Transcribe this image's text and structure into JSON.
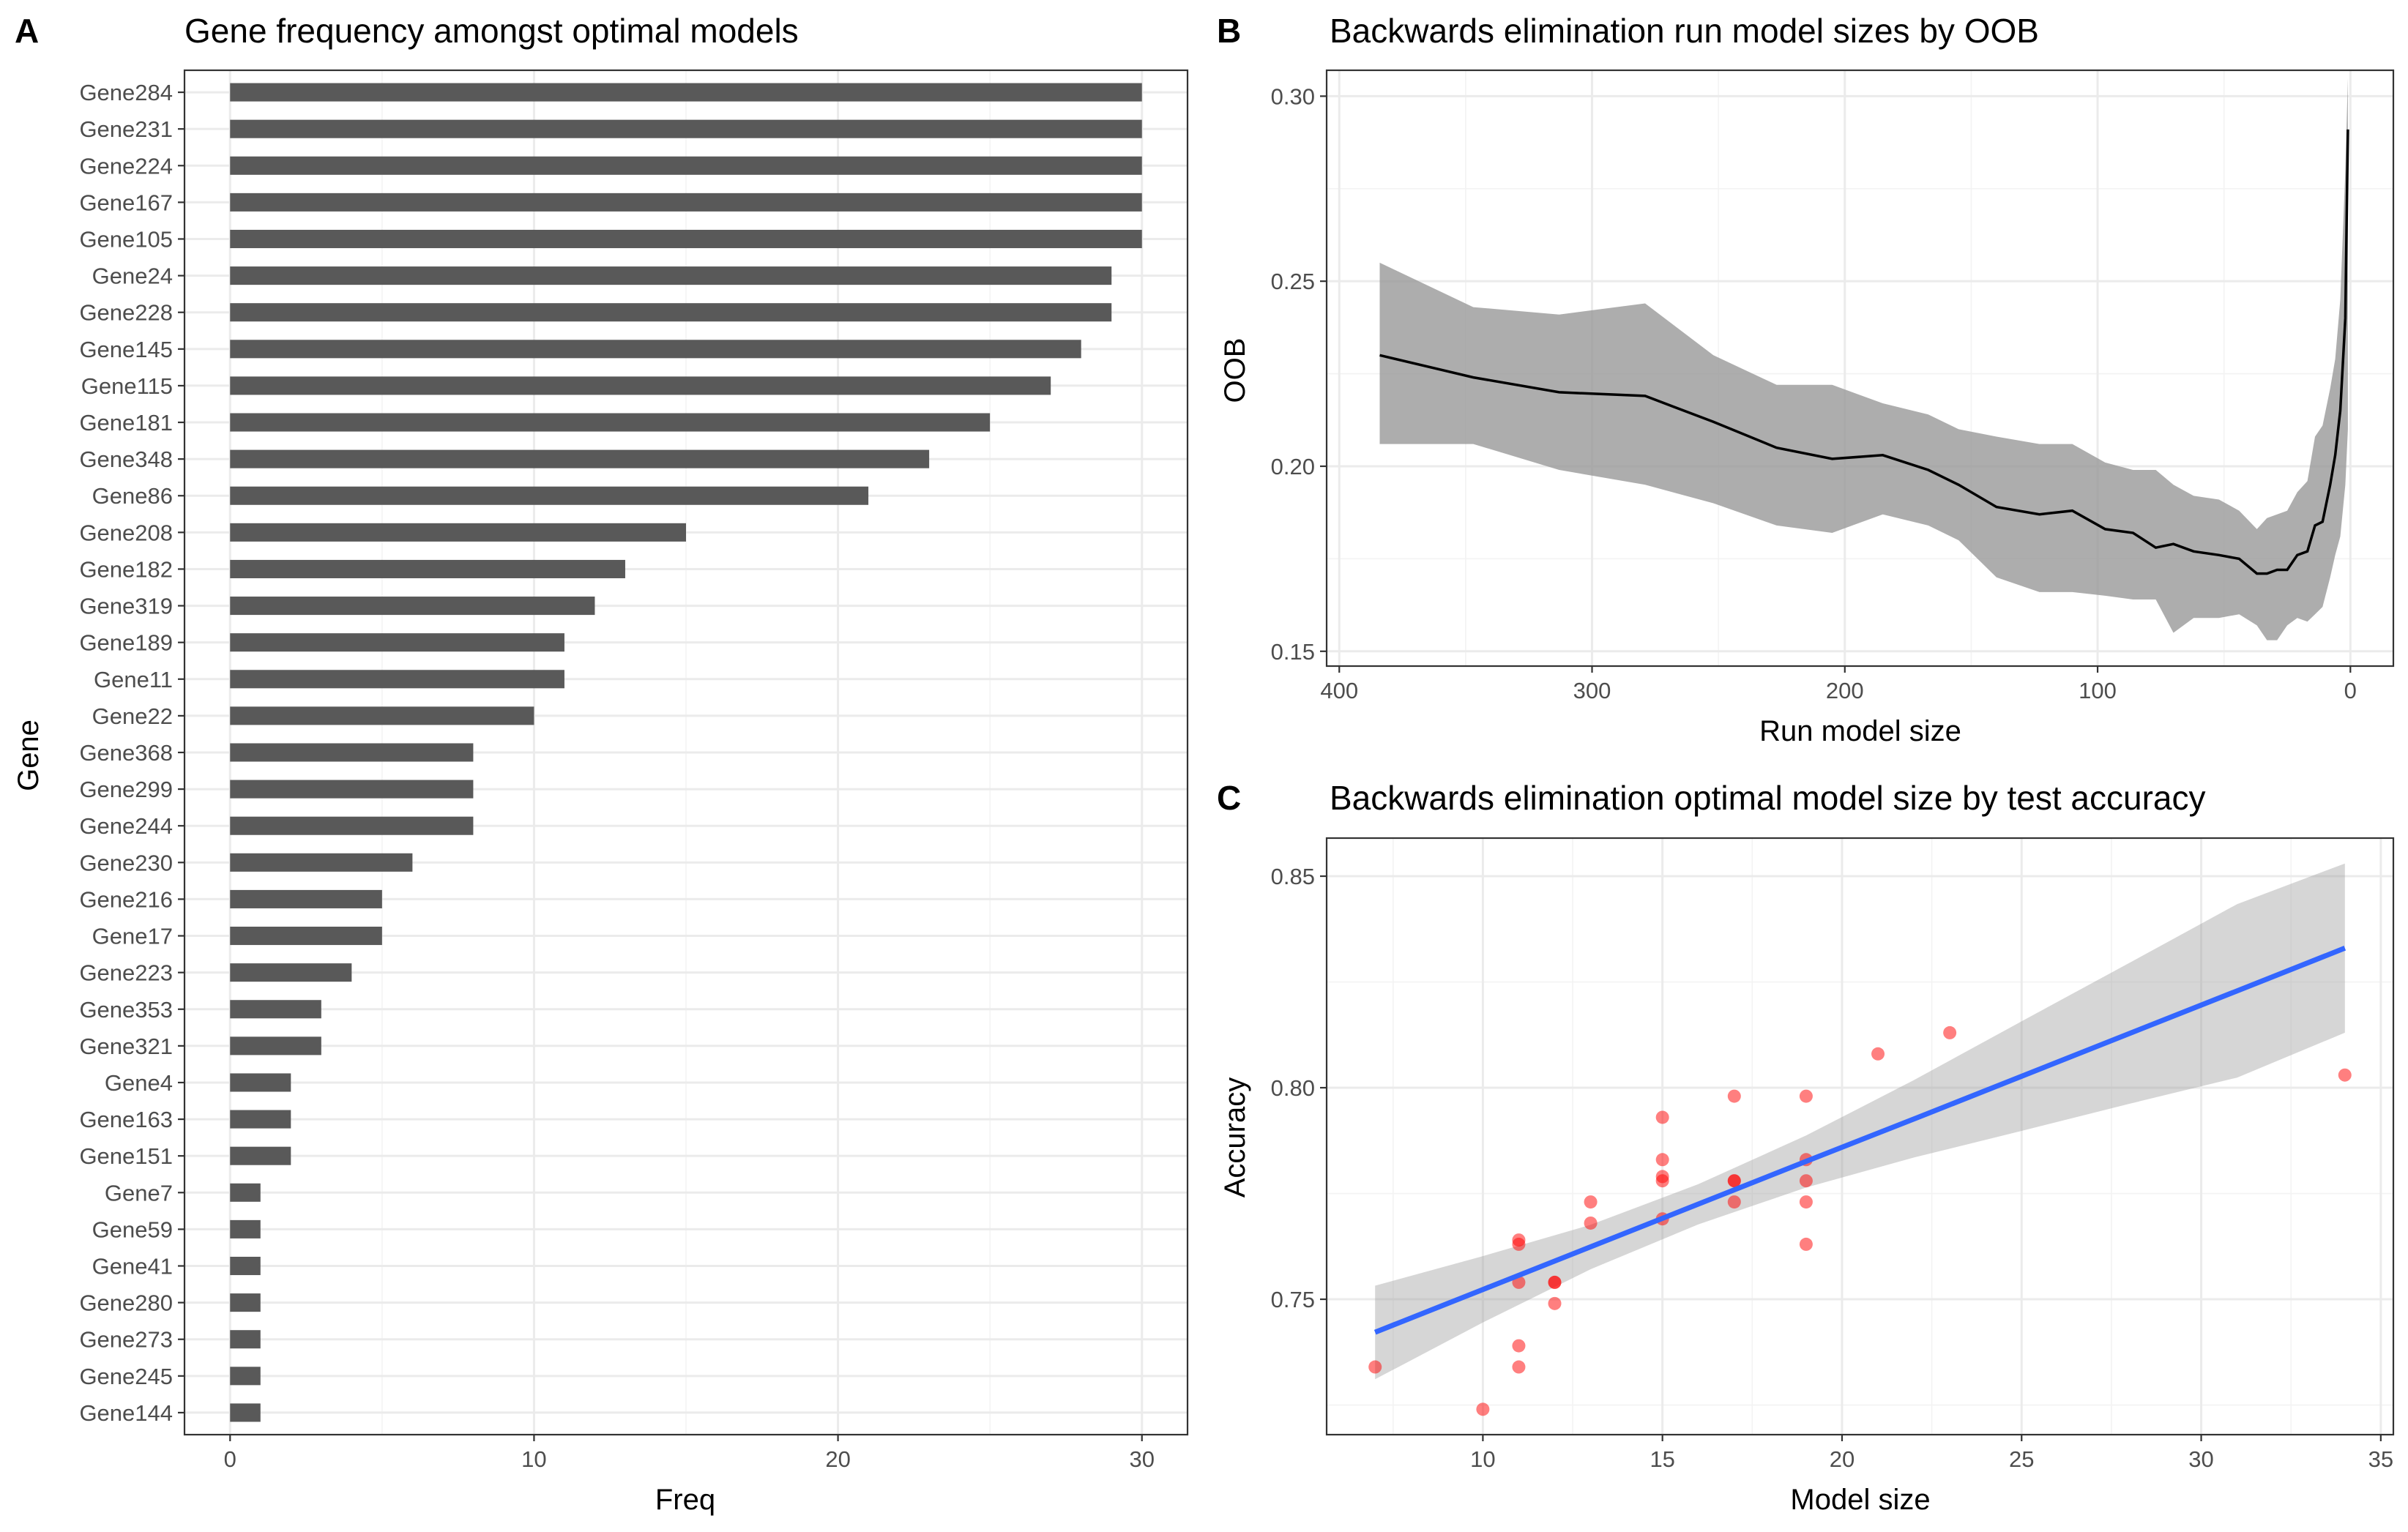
{
  "chart_data": [
    {
      "panel": "A",
      "type": "bar",
      "orientation": "horizontal",
      "title": "Gene frequency amongst optimal models",
      "xlabel": "Freq",
      "ylabel": "Gene",
      "xlim": [
        -1.5,
        31.5
      ],
      "xticks": [
        0,
        10,
        20,
        30
      ],
      "grid": true,
      "bar_color": "#595959",
      "categories": [
        "Gene284",
        "Gene231",
        "Gene224",
        "Gene167",
        "Gene105",
        "Gene24",
        "Gene228",
        "Gene145",
        "Gene115",
        "Gene181",
        "Gene348",
        "Gene86",
        "Gene208",
        "Gene182",
        "Gene319",
        "Gene189",
        "Gene11",
        "Gene22",
        "Gene368",
        "Gene299",
        "Gene244",
        "Gene230",
        "Gene216",
        "Gene17",
        "Gene223",
        "Gene353",
        "Gene321",
        "Gene4",
        "Gene163",
        "Gene151",
        "Gene7",
        "Gene59",
        "Gene41",
        "Gene280",
        "Gene273",
        "Gene245",
        "Gene144"
      ],
      "values": [
        30,
        30,
        30,
        30,
        30,
        29,
        29,
        28,
        27,
        25,
        23,
        21,
        15,
        13,
        12,
        11,
        11,
        10,
        8,
        8,
        8,
        6,
        5,
        5,
        4,
        3,
        3,
        2,
        2,
        2,
        1,
        1,
        1,
        1,
        1,
        1,
        1
      ]
    },
    {
      "panel": "B",
      "type": "line",
      "title": "Backwards elimination run model sizes by OOB",
      "xlabel": "Run model size",
      "ylabel": "OOB",
      "xlim": [
        405,
        -17
      ],
      "ylim": [
        0.146,
        0.307
      ],
      "xticks": [
        400,
        300,
        200,
        100,
        0
      ],
      "yticks": [
        0.15,
        0.2,
        0.25,
        0.3
      ],
      "grid": true,
      "x_reversed": true,
      "line_color": "#000000",
      "band_color": "#999999",
      "x": [
        384,
        347,
        313,
        279,
        252,
        227,
        205,
        185,
        167,
        155,
        140,
        123,
        110,
        97,
        86,
        77,
        70,
        62,
        52,
        44,
        37,
        33,
        29,
        25,
        21,
        17,
        14,
        11,
        8,
        6,
        4,
        2,
        1
      ],
      "y": [
        0.23,
        0.224,
        0.22,
        0.219,
        0.212,
        0.205,
        0.202,
        0.203,
        0.199,
        0.195,
        0.189,
        0.187,
        0.188,
        0.183,
        0.182,
        0.178,
        0.179,
        0.177,
        0.176,
        0.175,
        0.171,
        0.171,
        0.172,
        0.172,
        0.176,
        0.177,
        0.184,
        0.185,
        0.195,
        0.203,
        0.215,
        0.24,
        0.291
      ],
      "lower": [
        0.206,
        0.206,
        0.199,
        0.195,
        0.19,
        0.184,
        0.182,
        0.187,
        0.184,
        0.18,
        0.17,
        0.166,
        0.166,
        0.165,
        0.164,
        0.164,
        0.155,
        0.159,
        0.159,
        0.16,
        0.157,
        0.153,
        0.153,
        0.157,
        0.159,
        0.158,
        0.16,
        0.162,
        0.17,
        0.176,
        0.181,
        0.195,
        0.21
      ],
      "upper": [
        0.255,
        0.243,
        0.241,
        0.244,
        0.23,
        0.222,
        0.222,
        0.217,
        0.214,
        0.21,
        0.208,
        0.206,
        0.206,
        0.201,
        0.199,
        0.199,
        0.195,
        0.192,
        0.191,
        0.188,
        0.183,
        0.186,
        0.187,
        0.188,
        0.193,
        0.196,
        0.208,
        0.211,
        0.221,
        0.229,
        0.245,
        0.28,
        0.305
      ]
    },
    {
      "panel": "C",
      "type": "scatter",
      "title": "Backwards elimination optimal model size by test accuracy",
      "xlabel": "Model size",
      "ylabel": "Accuracy",
      "xlim": [
        5.65,
        35.35
      ],
      "ylim": [
        0.718,
        0.859
      ],
      "xticks": [
        10,
        15,
        20,
        25,
        30,
        35
      ],
      "yticks": [
        0.75,
        0.8,
        0.85
      ],
      "grid": true,
      "point_color": "#ff0000",
      "fit_color": "#3366ff",
      "band_color": "#999999",
      "points": [
        [
          7,
          0.734
        ],
        [
          10,
          0.724
        ],
        [
          11,
          0.734
        ],
        [
          11,
          0.739
        ],
        [
          11,
          0.754
        ],
        [
          11,
          0.763
        ],
        [
          11,
          0.764
        ],
        [
          12,
          0.749
        ],
        [
          12,
          0.754
        ],
        [
          12,
          0.754
        ],
        [
          13,
          0.768
        ],
        [
          13,
          0.773
        ],
        [
          15,
          0.769
        ],
        [
          15,
          0.778
        ],
        [
          15,
          0.779
        ],
        [
          15,
          0.783
        ],
        [
          15,
          0.793
        ],
        [
          17,
          0.773
        ],
        [
          17,
          0.778
        ],
        [
          17,
          0.778
        ],
        [
          17,
          0.798
        ],
        [
          19,
          0.763
        ],
        [
          19,
          0.773
        ],
        [
          19,
          0.778
        ],
        [
          19,
          0.783
        ],
        [
          19,
          0.798
        ],
        [
          21,
          0.808
        ],
        [
          23,
          0.813
        ],
        [
          34,
          0.803
        ]
      ],
      "fit": {
        "x": [
          7,
          10,
          13,
          16,
          19,
          22,
          25,
          28,
          31,
          34
        ],
        "y": [
          0.7422,
          0.7523,
          0.7624,
          0.7725,
          0.7826,
          0.7926,
          0.8027,
          0.8128,
          0.8229,
          0.833
        ],
        "lower": [
          0.7311,
          0.7445,
          0.7571,
          0.7677,
          0.7764,
          0.7835,
          0.7898,
          0.7962,
          0.8024,
          0.813
        ],
        "upper": [
          0.7532,
          0.7602,
          0.7676,
          0.7772,
          0.7887,
          0.8018,
          0.8157,
          0.8295,
          0.8434,
          0.853
        ]
      }
    }
  ]
}
